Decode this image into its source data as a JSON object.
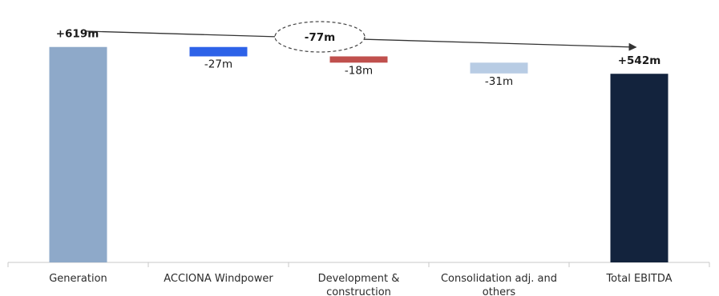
{
  "chart_data": {
    "type": "waterfall",
    "categories": [
      [
        "Generation"
      ],
      [
        "ACCIONA Windpower"
      ],
      [
        "Development &",
        "construction"
      ],
      [
        "Consolidation adj. and",
        "others"
      ],
      [
        "Total EBITDA"
      ]
    ],
    "values": [
      619,
      -27,
      -18,
      -31,
      542
    ],
    "bar_kinds": [
      "total",
      "delta",
      "delta",
      "delta",
      "total"
    ],
    "data_labels": [
      "+619m",
      "-27m",
      "-18m",
      "-31m",
      "+542m"
    ],
    "bridge_label": "-77m",
    "colors": [
      "#8ea9c9",
      "#2d62e8",
      "#c0504d",
      "#b8cce4",
      "#13233d"
    ],
    "axis_color": "#c8c8c8",
    "arrow_color": "#333333",
    "grid": false,
    "legend": "none",
    "title": "",
    "xlabel": "",
    "ylabel": ""
  }
}
